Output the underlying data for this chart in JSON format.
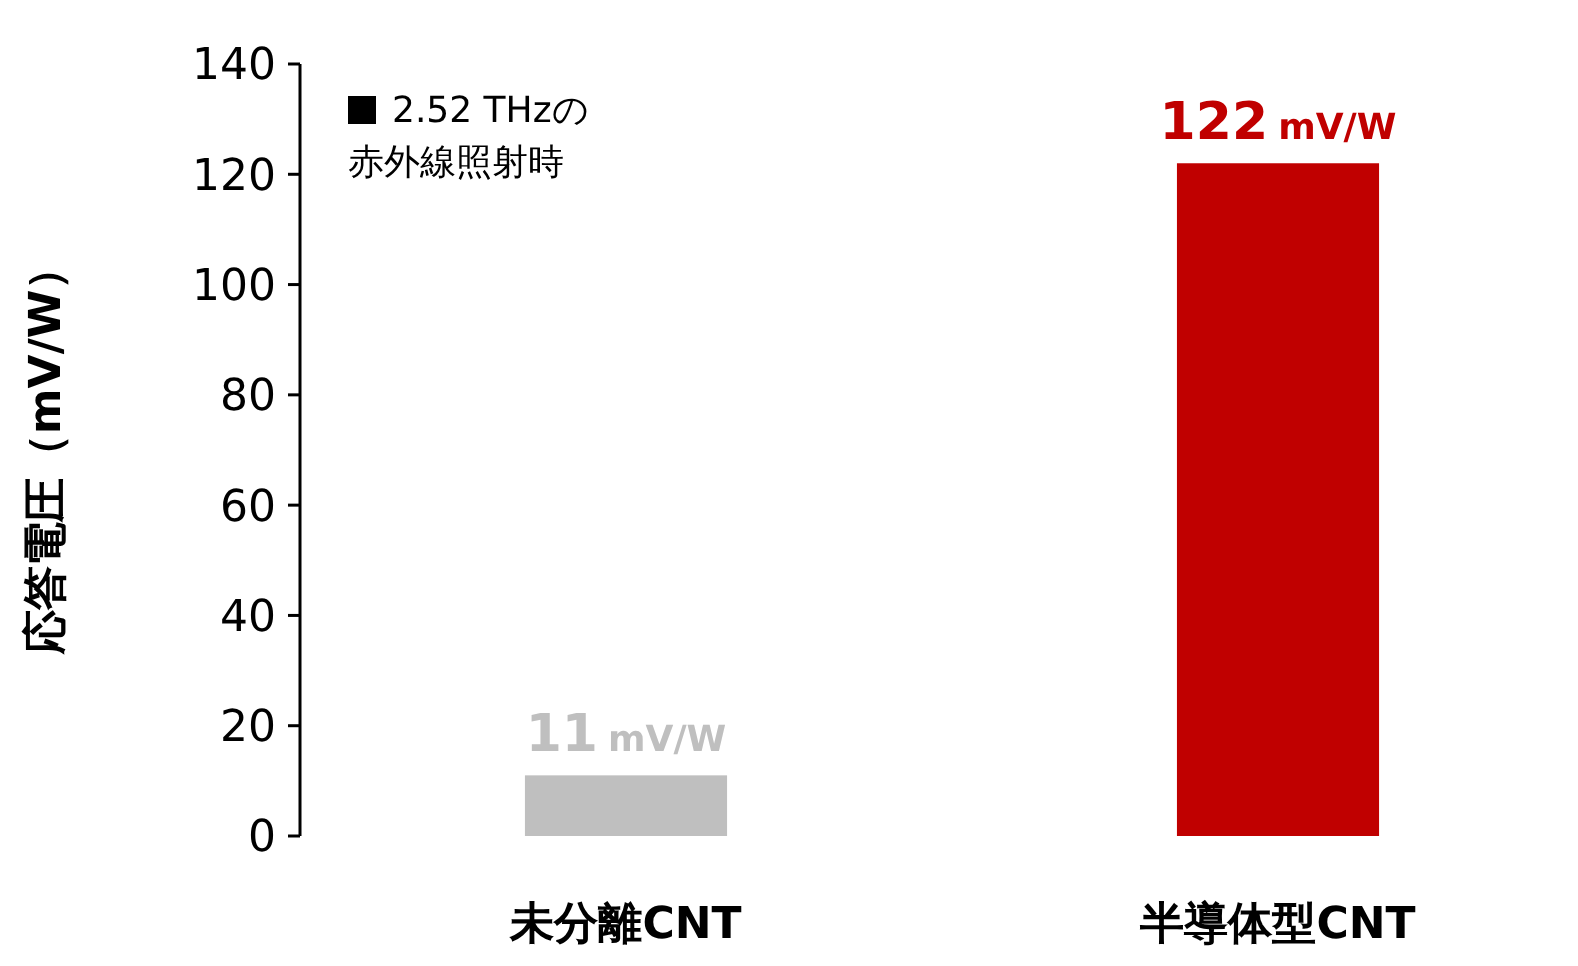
{
  "chart_data": {
    "type": "bar",
    "ylabel": "応答電圧（mV/W）",
    "categories": [
      "未分離CNT",
      "半導体型CNT"
    ],
    "values": [
      11,
      122
    ],
    "colors": [
      "#bfbfbf",
      "#c00000"
    ],
    "value_labels": [
      "11 mV/W",
      "122 mV/W"
    ],
    "ylim": [
      0,
      140
    ],
    "yticks": [
      0,
      20,
      40,
      60,
      80,
      100,
      120,
      140
    ],
    "grid": false,
    "annotations": [
      "2.52 THzの赤外線照射時"
    ]
  }
}
